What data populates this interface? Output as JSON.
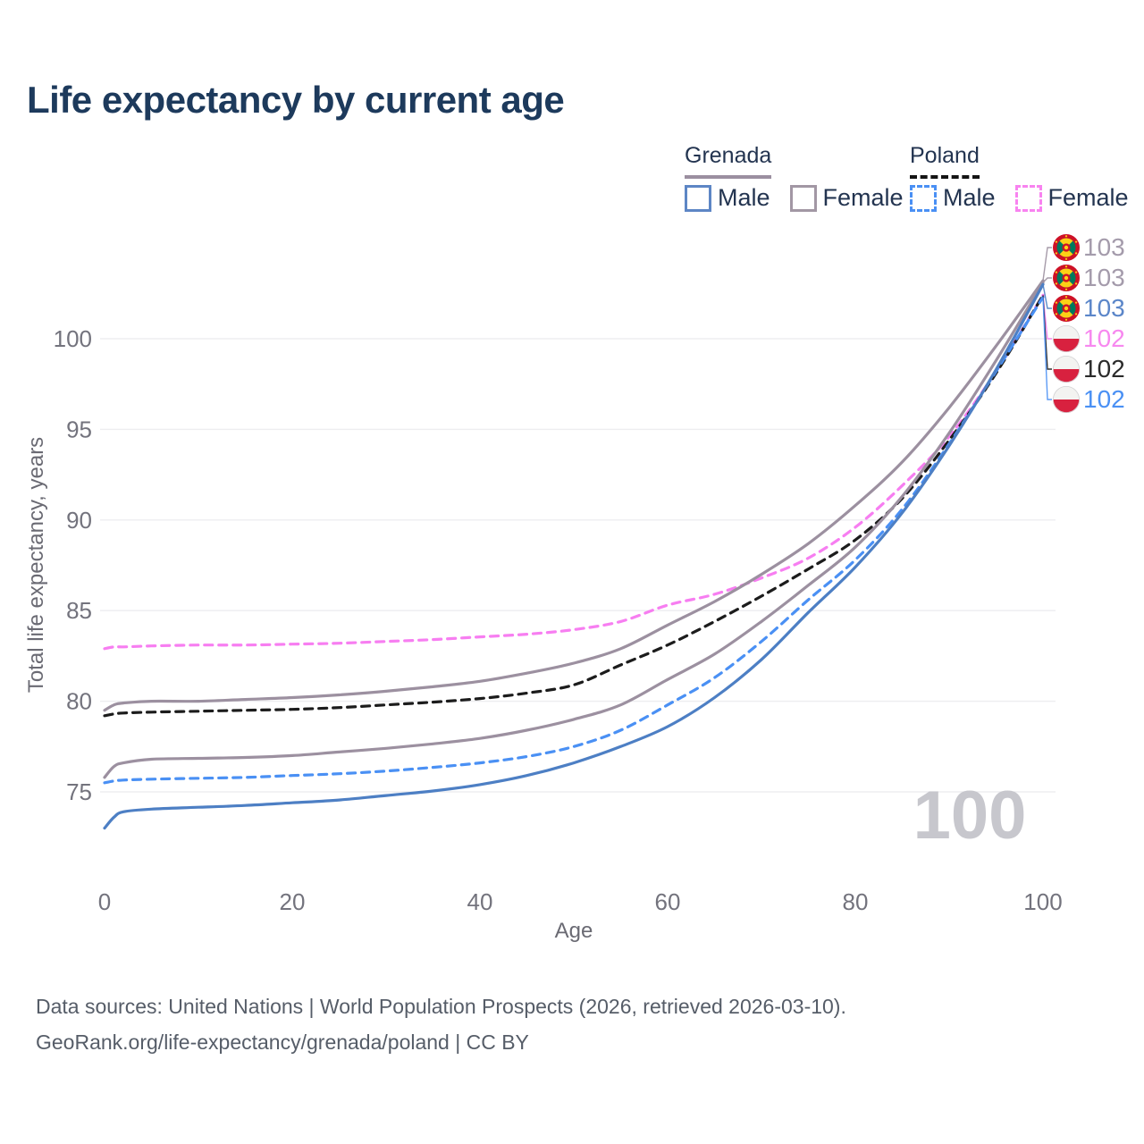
{
  "title": "Life expectancy by current age",
  "age_indicator_watermark": "100",
  "legend": {
    "groups": [
      {
        "country": "Grenada",
        "line_style": "solid",
        "underline_color": "#9b8fa0",
        "items": [
          {
            "label": "Male",
            "color": "#4d7fc4",
            "dashed": false
          },
          {
            "label": "Female",
            "color": "#a297a4",
            "dashed": false
          }
        ]
      },
      {
        "country": "Poland",
        "line_style": "dashed",
        "underline_color": "#141414",
        "items": [
          {
            "label": "Male",
            "color": "#4a90f4",
            "dashed": true
          },
          {
            "label": "Female",
            "color": "#f883f0",
            "dashed": true
          }
        ]
      }
    ]
  },
  "chart_data": {
    "type": "line",
    "title": "Life expectancy by current age",
    "xlabel": "Age",
    "ylabel": "Total life expectancy, years",
    "x_ticks": [
      0,
      20,
      40,
      60,
      80,
      100
    ],
    "y_ticks": [
      75,
      80,
      85,
      90,
      95,
      100
    ],
    "xlim": [
      0,
      100
    ],
    "ylim": [
      72,
      104
    ],
    "grid": "horizontal-only",
    "gridline_color": "#ededf0",
    "tick_label_color": "#73737d",
    "axis_title_color": "#6a6a73",
    "watermark_color": "#c7c7cd",
    "legend_position": "top-right",
    "ages": [
      0,
      1,
      2,
      5,
      10,
      15,
      20,
      25,
      30,
      35,
      40,
      45,
      50,
      55,
      60,
      65,
      70,
      75,
      80,
      85,
      90,
      95,
      100
    ],
    "series": [
      {
        "name": "Poland Female",
        "country": "Poland",
        "sex": "Female",
        "style": "dashed",
        "color": "#f77ef1",
        "end_label": "102",
        "end_label_color": "#f788ef",
        "flag": "poland",
        "label_row": 3,
        "values": [
          82.9,
          83.0,
          83.0,
          83.05,
          83.1,
          83.1,
          83.15,
          83.2,
          83.3,
          83.4,
          83.55,
          83.7,
          83.95,
          84.4,
          85.3,
          85.9,
          86.8,
          87.9,
          89.6,
          91.9,
          94.6,
          98.2,
          102.4
        ]
      },
      {
        "name": "Poland Both sexes",
        "country": "Poland",
        "sex": "Both",
        "style": "dashed",
        "color": "#1c1c1c",
        "end_label": "102",
        "end_label_color": "#2b2b2b",
        "flag": "poland",
        "label_row": 4,
        "values": [
          79.2,
          79.3,
          79.35,
          79.4,
          79.45,
          79.5,
          79.55,
          79.65,
          79.8,
          79.95,
          80.15,
          80.45,
          80.9,
          82.0,
          83.1,
          84.4,
          85.8,
          87.3,
          88.9,
          91.2,
          94.4,
          98.1,
          102.4
        ]
      },
      {
        "name": "Poland Male",
        "country": "Poland",
        "sex": "Male",
        "style": "dashed",
        "color": "#4a90f4",
        "end_label": "102",
        "end_label_color": "#4a90f4",
        "flag": "poland",
        "label_row": 5,
        "values": [
          75.5,
          75.6,
          75.65,
          75.7,
          75.75,
          75.8,
          75.9,
          76.0,
          76.15,
          76.35,
          76.6,
          76.95,
          77.5,
          78.4,
          79.8,
          81.3,
          83.3,
          85.6,
          87.8,
          90.6,
          94.2,
          98.2,
          102.3
        ]
      },
      {
        "name": "Grenada Female",
        "country": "Grenada",
        "sex": "Female",
        "style": "solid",
        "color": "#9c90a0",
        "end_label": "103",
        "end_label_color": "#a49bab",
        "flag": "grenada",
        "label_row": 0,
        "values": [
          79.5,
          79.8,
          79.9,
          80.0,
          80.0,
          80.1,
          80.2,
          80.35,
          80.55,
          80.8,
          81.1,
          81.55,
          82.1,
          82.9,
          84.2,
          85.5,
          87.0,
          88.7,
          90.8,
          93.2,
          96.2,
          99.6,
          103.2
        ]
      },
      {
        "name": "Grenada Both sexes",
        "country": "Grenada",
        "sex": "Both",
        "style": "solid",
        "color": "#9c90a0",
        "end_label": "103",
        "end_label_color": "#a49bab",
        "flag": "grenada",
        "label_row": 1,
        "values": [
          75.8,
          76.4,
          76.6,
          76.8,
          76.85,
          76.9,
          77.0,
          77.2,
          77.4,
          77.65,
          77.95,
          78.4,
          79.0,
          79.8,
          81.2,
          82.6,
          84.4,
          86.4,
          88.5,
          91.3,
          94.8,
          98.8,
          103.1
        ]
      },
      {
        "name": "Grenada Male",
        "country": "Grenada",
        "sex": "Male",
        "style": "solid",
        "color": "#4d7fc4",
        "end_label": "103",
        "end_label_color": "#5b86c9",
        "flag": "grenada",
        "label_row": 2,
        "values": [
          73.0,
          73.6,
          73.9,
          74.05,
          74.15,
          74.25,
          74.4,
          74.55,
          74.8,
          75.05,
          75.4,
          75.9,
          76.6,
          77.5,
          78.6,
          80.2,
          82.3,
          84.9,
          87.4,
          90.4,
          94.1,
          98.3,
          103.0
        ]
      }
    ]
  },
  "footer": {
    "line1": "Data sources: United Nations | World Population Prospects (2026, retrieved 2026-03-10).",
    "line2": "GeoRank.org/life-expectancy/grenada/poland | CC BY"
  }
}
